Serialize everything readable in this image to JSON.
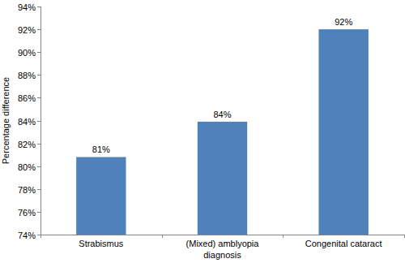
{
  "chart_data": {
    "type": "bar",
    "y_label": "Percentage difference",
    "categories": [
      "Strabismus",
      "(Mixed) amblyopia diagnosis",
      "Congenital cataract"
    ],
    "values": [
      80.8,
      83.9,
      92.0
    ],
    "value_labels": [
      "81%",
      "84%",
      "92%"
    ],
    "color": "#4f81bd",
    "ylim": [
      74,
      94
    ],
    "yticks": [
      {
        "value": 74,
        "label": "74%"
      },
      {
        "value": 76,
        "label": "76%"
      },
      {
        "value": 78,
        "label": "78%"
      },
      {
        "value": 80,
        "label": "80%"
      },
      {
        "value": 82,
        "label": "82%"
      },
      {
        "value": 84,
        "label": "84%"
      },
      {
        "value": 86,
        "label": "86%"
      },
      {
        "value": 88,
        "label": "88%"
      },
      {
        "value": 90,
        "label": "90%"
      },
      {
        "value": 92,
        "label": "92%"
      },
      {
        "value": 94,
        "label": "94%"
      }
    ],
    "grid": false,
    "data_labels": true
  }
}
